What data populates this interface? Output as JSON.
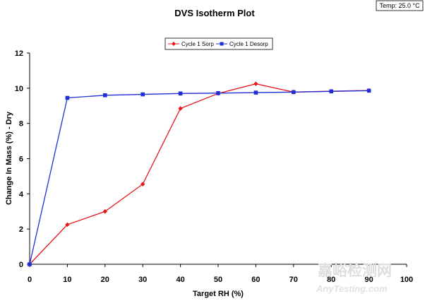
{
  "chart_data": {
    "type": "line",
    "title": "DVS Isotherm Plot",
    "temperature_label": "Temp: 25.0 °C",
    "xlabel": "Target RH (%)",
    "ylabel": "Change In Mass (%) - Dry",
    "xlim": [
      0,
      100
    ],
    "ylim": [
      0,
      12
    ],
    "xticks": [
      0,
      10,
      20,
      30,
      40,
      50,
      60,
      70,
      80,
      90,
      100
    ],
    "yticks": [
      0,
      2,
      4,
      6,
      8,
      10,
      12
    ],
    "legend_position": "top-center",
    "grid": false,
    "series": [
      {
        "name": "Cycle 1 Sorp",
        "color": "#e8151b",
        "marker": "diamond",
        "x": [
          0,
          10,
          20,
          30,
          40,
          50,
          60,
          70,
          80,
          90
        ],
        "y": [
          0,
          2.25,
          3.0,
          4.55,
          8.85,
          9.7,
          10.25,
          9.78,
          9.83,
          9.87
        ]
      },
      {
        "name": "Cycle 1 Desorp",
        "color": "#1f2fd6",
        "marker": "square",
        "x": [
          0,
          10,
          20,
          30,
          40,
          50,
          60,
          70,
          80,
          90
        ],
        "y": [
          0,
          9.45,
          9.6,
          9.65,
          9.7,
          9.72,
          9.75,
          9.78,
          9.82,
          9.86
        ]
      }
    ]
  },
  "watermark": {
    "chinese": "嘉峪检测网",
    "english": "AnyTesting.com"
  }
}
